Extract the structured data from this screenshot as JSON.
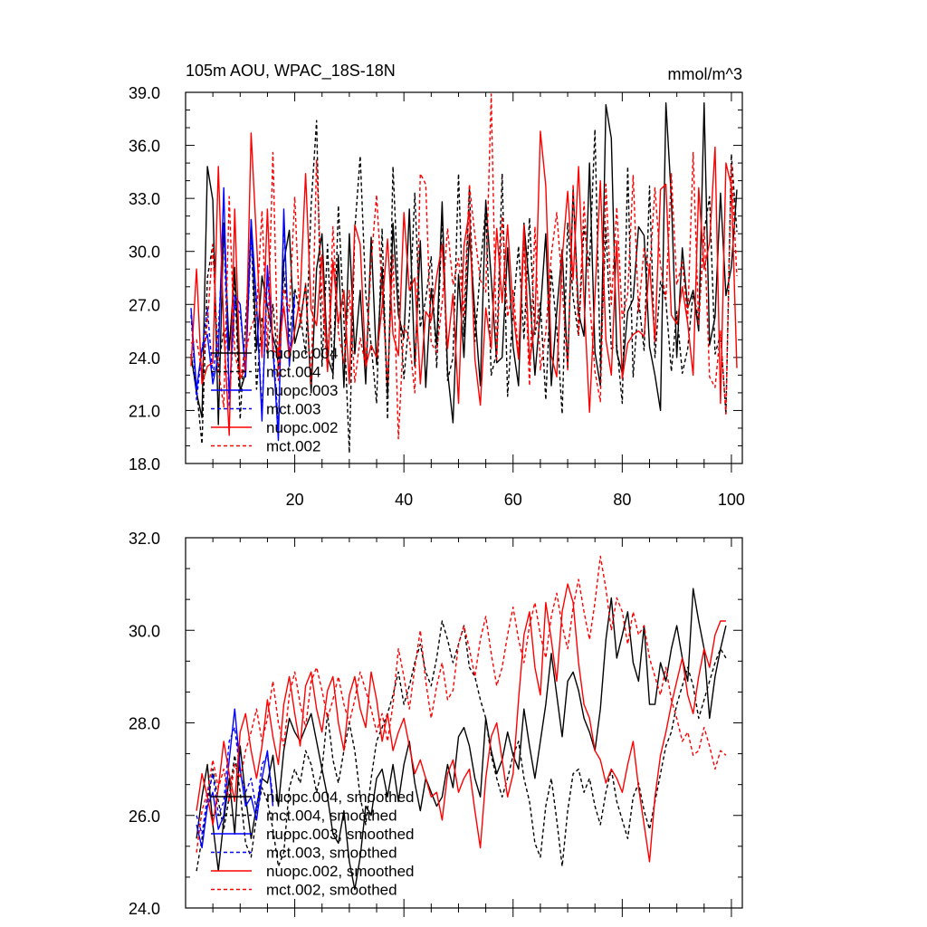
{
  "colors": {
    "nuopc004": "#000000",
    "mct004": "#000000",
    "nuopc003": "#0000ff",
    "mct003": "#0000ff",
    "nuopc002": "#ff0000",
    "mct002": "#ff0000"
  },
  "chart_data": [
    {
      "type": "line",
      "title": "105m AOU, WPAC_18S-18N",
      "units": "mmol/m^3",
      "xlim": [
        0,
        102
      ],
      "ylim": [
        18.0,
        39.0
      ],
      "xticks": [
        "20",
        "40",
        "60",
        "80",
        "100"
      ],
      "yticks": [
        "18.0",
        "21.0",
        "24.0",
        "27.0",
        "30.0",
        "33.0",
        "36.0",
        "39.0"
      ],
      "legend": [
        "nuopc.004",
        "mct.004",
        "nuopc.003",
        "mct.003",
        "nuopc.002",
        "mct.002"
      ],
      "series": [
        {
          "name": "nuopc.004",
          "color": "#000000",
          "dash": false,
          "x_start": 1,
          "values": [
            24.2,
            22.0,
            20.6,
            34.8,
            32.9,
            20.2,
            31.6,
            24.4,
            29.1,
            22.1,
            23.1,
            31.8,
            24.4,
            28.6,
            26.9,
            25.2,
            24.0,
            29.4,
            31.2,
            24.8,
            26.0,
            28.1,
            22.0,
            29.0,
            31.0,
            24.0,
            23.1,
            29.8,
            22.3,
            31.0,
            24.2,
            27.8,
            22.5,
            30.8,
            23.6,
            29.1,
            21.9,
            31.6,
            26.4,
            25.1,
            32.4,
            23.5,
            30.6,
            22.3,
            27.9,
            24.7,
            32.8,
            23.2,
            20.3,
            28.7,
            24.0,
            31.0,
            26.5,
            22.4,
            32.9,
            28.5,
            23.7,
            24.0,
            30.2,
            24.6,
            22.4,
            31.6,
            27.9,
            23.0,
            26.6,
            31.0,
            22.4,
            26.6,
            30.1,
            23.4,
            33.5,
            26.5,
            25.2,
            35.0,
            24.3,
            22.4,
            38.3,
            36.4,
            24.3,
            23.1,
            26.6,
            27.3,
            31.4,
            30.9,
            24.6,
            23.0,
            21.0,
            38.4,
            33.0,
            24.0,
            30.2,
            26.8,
            27.8,
            25.5,
            38.4,
            24.7,
            26.3,
            33.3,
            27.5,
            29.1,
            33.5
          ]
        },
        {
          "name": "mct.004",
          "color": "#000000",
          "dash": true,
          "x_start": 1,
          "values": [
            24.0,
            22.2,
            19.1,
            28.5,
            30.4,
            23.4,
            25.6,
            24.6,
            28.4,
            20.5,
            26.0,
            31.3,
            22.2,
            26.3,
            24.2,
            27.0,
            23.4,
            28.9,
            25.2,
            27.9,
            26.5,
            24.2,
            32.6,
            37.4,
            23.5,
            30.4,
            22.8,
            32.6,
            26.1,
            18.6,
            31.2,
            35.4,
            27.6,
            24.7,
            21.4,
            31.3,
            20.5,
            34.8,
            27.7,
            22.8,
            26.3,
            33.3,
            25.7,
            27.3,
            29.7,
            23.4,
            32.1,
            22.7,
            24.0,
            34.4,
            25.2,
            33.6,
            24.9,
            29.0,
            32.5,
            23.0,
            24.3,
            34.4,
            21.8,
            26.7,
            30.3,
            25.0,
            31.9,
            25.3,
            27.1,
            21.6,
            28.9,
            25.7,
            20.8,
            31.6,
            27.4,
            25.2,
            31.4,
            29.2,
            36.9,
            23.4,
            31.4,
            24.5,
            24.7,
            21.4,
            34.8,
            22.9,
            27.3,
            24.4,
            33.7,
            24.0,
            28.3,
            27.2,
            23.2,
            26.6,
            23.1,
            24.5,
            27.7,
            26.1,
            31.1,
            33.1,
            24.2,
            25.3,
            20.8,
            35.5,
            31.1
          ]
        },
        {
          "name": "nuopc.003",
          "color": "#0000ff",
          "dash": false,
          "x_start": 1,
          "values": [
            26.8,
            22.2,
            24.5,
            25.3,
            22.5,
            24.1,
            33.6,
            21.7,
            27.5,
            27.0,
            22.9,
            31.8,
            27.1,
            20.4,
            29.2,
            24.5,
            19.3,
            32.4,
            23.5,
            27.6
          ]
        },
        {
          "name": "mct.003",
          "color": "#0000ff",
          "dash": true,
          "x_start": 1,
          "values": [
            26.4,
            21.6,
            24.4,
            26.8,
            22.9,
            25.5,
            31.5,
            21.2,
            27.0,
            26.5,
            23.4,
            30.7,
            26.8,
            21.0,
            28.6,
            24.9,
            20.0,
            31.8,
            24.1,
            27.0
          ]
        },
        {
          "name": "nuopc.002",
          "color": "#ff0000",
          "dash": false,
          "x_start": 1,
          "values": [
            23.5,
            29.0,
            22.5,
            23.5,
            23.7,
            34.8,
            25.6,
            19.6,
            32.4,
            22.8,
            23.4,
            36.7,
            30.6,
            24.0,
            32.4,
            24.4,
            24.2,
            26.9,
            24.0,
            25.5,
            27.5,
            34.4,
            26.7,
            25.8,
            29.8,
            23.2,
            29.5,
            25.9,
            27.8,
            22.5,
            31.5,
            30.4,
            23.5,
            24.7,
            24.0,
            26.9,
            30.7,
            25.3,
            24.1,
            32.2,
            27.8,
            28.5,
            22.5,
            26.6,
            26.1,
            28.6,
            30.4,
            24.5,
            27.6,
            21.4,
            30.3,
            32.3,
            23.9,
            21.3,
            26.8,
            24.5,
            31.3,
            27.1,
            31.5,
            26.6,
            23.9,
            31.5,
            23.7,
            25.9,
            36.8,
            33.7,
            24.1,
            22.9,
            29.6,
            33.4,
            28.4,
            34.8,
            27.3,
            20.9,
            27.5,
            34.0,
            25.0,
            23.0,
            30.6,
            22.8,
            24.8,
            25.3,
            25.5,
            25.2,
            29.3,
            24.9,
            33.5,
            33.8,
            26.4,
            25.9,
            28.0,
            25.9,
            23.0,
            33.6,
            29.0,
            30.5,
            35.9,
            21.4,
            35.0,
            33.7,
            23.4
          ]
        },
        {
          "name": "mct.002",
          "color": "#ff0000",
          "dash": true,
          "x_start": 1,
          "values": [
            24.8,
            25.0,
            23.2,
            26.0,
            30.4,
            23.3,
            21.2,
            33.1,
            24.3,
            22.8,
            24.3,
            25.7,
            26.5,
            32.3,
            24.4,
            35.6,
            22.7,
            27.9,
            26.6,
            33.1,
            25.7,
            28.2,
            22.5,
            35.2,
            27.3,
            23.3,
            31.4,
            25.4,
            23.7,
            27.8,
            22.6,
            25.1,
            23.5,
            29.4,
            33.2,
            27.7,
            22.6,
            29.8,
            19.4,
            25.8,
            25.0,
            22.0,
            34.4,
            33.8,
            24.8,
            24.3,
            27.1,
            31.3,
            28.1,
            29.6,
            26.4,
            33.8,
            30.9,
            28.4,
            27.7,
            38.9,
            23.9,
            32.0,
            26.3,
            27.8,
            24.1,
            30.5,
            22.4,
            31.4,
            23.3,
            25.4,
            29.8,
            32.2,
            28.0,
            23.3,
            33.8,
            25.3,
            32.8,
            27.3,
            23.2,
            21.5,
            33.8,
            27.0,
            32.5,
            26.2,
            27.6,
            34.3,
            26.6,
            30.2,
            28.7,
            33.6,
            29.2,
            27.3,
            34.4,
            28.1,
            29.4,
            26.2,
            35.6,
            25.8,
            31.4,
            22.9,
            22.3,
            25.5,
            20.8,
            34.9,
            28.6
          ]
        }
      ]
    },
    {
      "type": "line",
      "title": "",
      "xlim": [
        0,
        102
      ],
      "ylim": [
        24.0,
        32.0
      ],
      "yticks": [
        "24.0",
        "26.0",
        "28.0",
        "30.0",
        "32.0"
      ],
      "legend": [
        "nuopc.004, smoothed",
        "mct.004, smoothed",
        "nuopc.003, smoothed",
        "mct.003, smoothed",
        "nuopc.002, smoothed",
        "mct.002, smoothed"
      ],
      "series": [
        {
          "name": "nuopc.004, smoothed",
          "color": "#000000",
          "dash": false,
          "x_start": 2,
          "values": [
            25.5,
            26.4,
            27.1,
            25.8,
            24.8,
            25.9,
            26.8,
            25.6,
            27.5,
            26.4,
            25.5,
            26.2,
            26.8,
            26.7,
            27.3,
            26.2,
            27.4,
            28.1,
            27.8,
            27.6,
            27.9,
            28.2,
            27.6,
            27.0,
            26.4,
            25.6,
            25.4,
            26.1,
            25.0,
            24.4,
            25.1,
            26.2,
            26.0,
            26.8,
            27.0,
            26.4,
            27.1,
            26.3,
            27.1,
            27.6,
            26.7,
            26.1,
            26.8,
            26.5,
            26.2,
            26.4,
            27.1,
            26.6,
            27.7,
            27.9,
            27.5,
            26.8,
            26.4,
            28.1,
            27.4,
            26.9,
            27.2,
            27.8,
            27.3,
            27.0,
            28.3,
            27.5,
            26.8,
            27.6,
            28.4,
            29.5,
            28.6,
            27.7,
            28.9,
            29.1,
            28.7,
            28.1,
            27.8,
            27.4,
            28.3,
            29.8,
            30.7,
            29.4,
            29.9,
            30.4,
            29.3,
            28.9,
            30.1,
            28.4,
            28.4,
            29.3,
            28.9,
            29.6,
            30.1,
            29.4,
            28.9,
            30.9,
            30.2,
            29.6,
            28.1,
            29.0,
            29.6,
            30.1
          ]
        },
        {
          "name": "mct.004, smoothed",
          "color": "#000000",
          "dash": true,
          "x_start": 2,
          "values": [
            24.8,
            25.5,
            26.2,
            27.0,
            26.3,
            25.7,
            26.4,
            27.3,
            26.5,
            25.4,
            25.1,
            26.0,
            26.6,
            26.3,
            25.7,
            24.9,
            25.2,
            26.6,
            27.0,
            26.7,
            27.4,
            27.1,
            26.5,
            27.0,
            28.2,
            27.2,
            26.7,
            27.4,
            28.0,
            27.4,
            26.4,
            25.8,
            26.8,
            27.6,
            27.9,
            28.2,
            28.6,
            29.1,
            28.4,
            28.8,
            29.3,
            29.7,
            29.1,
            28.8,
            29.4,
            30.2,
            29.8,
            29.3,
            29.7,
            30.1,
            29.2,
            29.0,
            28.5,
            28.1,
            27.3,
            26.8,
            26.4,
            26.8,
            27.3,
            27.6,
            26.8,
            26.3,
            25.4,
            25.1,
            26.2,
            26.8,
            25.9,
            24.9,
            26.1,
            26.9,
            27.0,
            26.5,
            26.8,
            26.2,
            25.8,
            26.5,
            27.0,
            26.3,
            25.9,
            25.5,
            26.4,
            26.7,
            26.1,
            25.7,
            26.3,
            26.9,
            27.5,
            27.8,
            28.4,
            28.8,
            29.2,
            28.8,
            28.1,
            28.5,
            28.9,
            29.3,
            29.6,
            29.4
          ]
        },
        {
          "name": "nuopc.003, smoothed",
          "color": "#0000ff",
          "dash": false,
          "x_start": 2,
          "values": [
            25.8,
            25.3,
            26.2,
            26.5,
            25.7,
            26.0,
            27.2,
            28.3,
            27.0,
            26.2,
            26.4,
            25.9,
            26.8,
            27.4,
            26.2
          ]
        },
        {
          "name": "mct.003, smoothed",
          "color": "#0000ff",
          "dash": true,
          "x_start": 2,
          "values": [
            26.0,
            25.6,
            26.4,
            26.9,
            26.0,
            26.3,
            27.6,
            27.9,
            26.9,
            26.5,
            26.8,
            26.1,
            27.1,
            27.3,
            26.4
          ]
        },
        {
          "name": "nuopc.002, smoothed",
          "color": "#ff0000",
          "dash": false,
          "x_start": 2,
          "values": [
            26.1,
            26.9,
            26.4,
            25.8,
            26.6,
            27.6,
            26.9,
            26.3,
            27.8,
            28.2,
            27.4,
            26.8,
            27.5,
            28.5,
            27.7,
            27.1,
            28.4,
            29.0,
            28.2,
            27.5,
            28.8,
            29.1,
            28.3,
            27.8,
            28.7,
            29.0,
            28.0,
            27.4,
            28.6,
            29.0,
            28.3,
            27.9,
            29.1,
            28.5,
            27.6,
            28.2,
            27.4,
            27.8,
            28.1,
            27.5,
            26.9,
            27.2,
            26.8,
            26.4,
            26.5,
            25.9,
            26.9,
            27.2,
            26.5,
            26.8,
            27.0,
            26.1,
            25.3,
            26.8,
            27.7,
            28.0,
            27.2,
            26.4,
            26.9,
            28.5,
            29.9,
            30.4,
            29.2,
            28.6,
            30.6,
            29.8,
            28.9,
            30.4,
            31.0,
            30.6,
            29.3,
            28.4,
            28.1,
            27.4,
            27.2,
            26.7,
            27.0,
            26.8,
            26.5,
            27.1,
            27.6,
            26.6,
            25.8,
            25.0,
            26.4,
            27.3,
            27.8,
            28.4,
            28.9,
            29.4,
            28.6,
            28.2,
            29.0,
            29.6,
            29.2,
            29.9,
            30.2,
            30.2
          ]
        },
        {
          "name": "mct.002, smoothed",
          "color": "#ff0000",
          "dash": true,
          "x_start": 2,
          "values": [
            25.2,
            26.1,
            26.5,
            27.2,
            26.6,
            27.0,
            26.3,
            27.1,
            26.8,
            27.4,
            27.8,
            28.3,
            27.6,
            28.1,
            28.9,
            28.0,
            27.5,
            28.6,
            29.1,
            28.4,
            27.9,
            28.9,
            29.2,
            28.7,
            28.1,
            28.5,
            29.0,
            28.4,
            28.0,
            28.5,
            29.1,
            28.7,
            28.3,
            27.8,
            28.2,
            27.6,
            28.4,
            29.6,
            29.0,
            28.3,
            29.2,
            30.0,
            28.9,
            28.1,
            28.8,
            29.3,
            28.5,
            28.7,
            29.7,
            30.1,
            29.6,
            29.0,
            29.8,
            30.3,
            29.5,
            28.8,
            29.2,
            29.9,
            30.5,
            29.8,
            29.3,
            30.1,
            30.6,
            29.9,
            29.4,
            30.3,
            30.8,
            30.1,
            29.6,
            30.5,
            31.1,
            30.4,
            29.8,
            30.6,
            31.6,
            30.9,
            30.0,
            30.7,
            30.4,
            29.7,
            30.4,
            29.9,
            30.1,
            29.4,
            29.0,
            28.6,
            29.2,
            28.5,
            28.1,
            27.6,
            27.8,
            27.3,
            27.4,
            27.9,
            27.5,
            27.0,
            27.4,
            27.3
          ]
        }
      ]
    }
  ]
}
